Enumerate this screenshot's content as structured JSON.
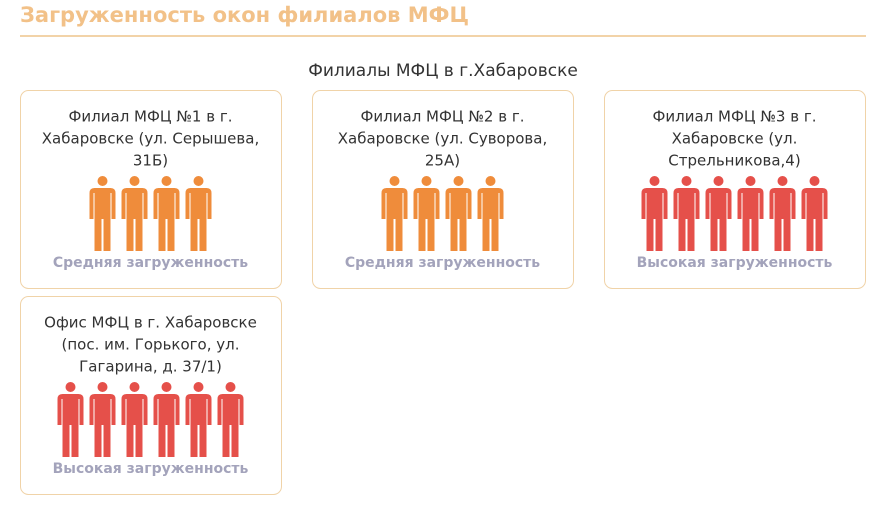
{
  "header": {
    "title": "Загруженность окон филиалов МФЦ"
  },
  "section": {
    "title": "Филиалы МФЦ в г.Хабаровске"
  },
  "branches": [
    {
      "name_lines": [
        "Филиал МФЦ №1 в г.",
        "Хабаровске (ул. Серышева,",
        "31Б)"
      ],
      "people": 4,
      "color": "#ef8c3b",
      "status": "Средняя загруженность"
    },
    {
      "name_lines": [
        "Филиал МФЦ №2 в г.",
        "Хабаровске (ул. Суворова,",
        "25А)"
      ],
      "people": 4,
      "color": "#ef8c3b",
      "status": "Средняя загруженность"
    },
    {
      "name_lines": [
        "Филиал МФЦ №3 в г.",
        "Хабаровске (ул.",
        "Стрельникова,4)"
      ],
      "people": 6,
      "color": "#e5504a",
      "status": "Высокая загруженность"
    },
    {
      "name_lines": [
        "Офис МФЦ в г. Хабаровске",
        "(пос. им. Горького, ул.",
        "Гагарина, д. 37/1)"
      ],
      "people": 6,
      "color": "#e5504a",
      "status": "Высокая загруженность"
    }
  ]
}
